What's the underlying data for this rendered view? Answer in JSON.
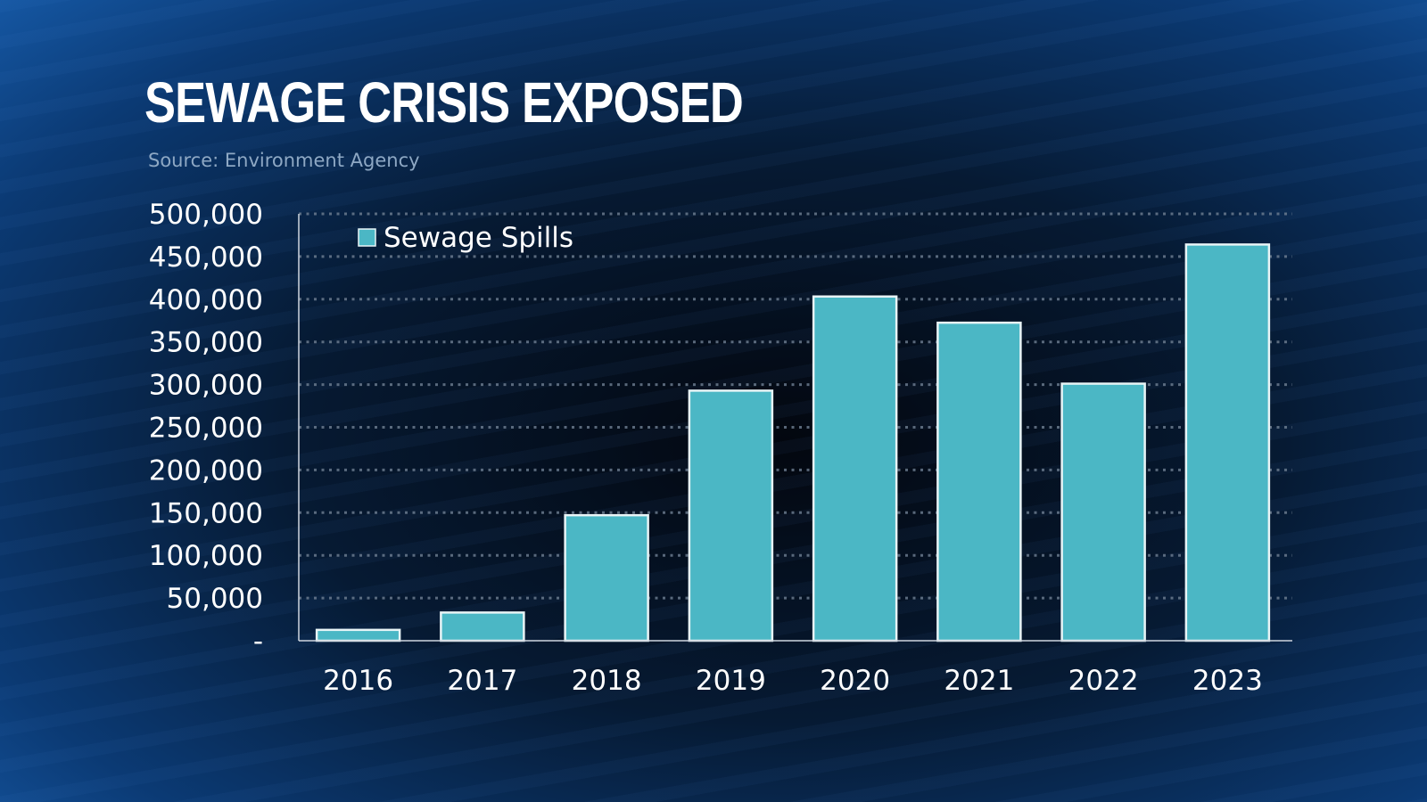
{
  "title": "SEWAGE CRISIS EXPOSED",
  "source": "Source: Environment Agency",
  "chart_data": {
    "type": "bar",
    "title": "SEWAGE CRISIS EXPOSED",
    "categories": [
      "2016",
      "2017",
      "2018",
      "2019",
      "2020",
      "2021",
      "2022",
      "2023"
    ],
    "series": [
      {
        "name": "Sewage Spills",
        "values": [
          12700,
          33000,
          147000,
          292900,
          403200,
          372500,
          301100,
          464100
        ],
        "color": "#4bb7c5"
      }
    ],
    "ylim": [
      0,
      500000
    ],
    "yticks": [
      0,
      50000,
      100000,
      150000,
      200000,
      250000,
      300000,
      350000,
      400000,
      450000,
      500000
    ],
    "ytick_labels": [
      "-",
      "50,000",
      "100,000",
      "150,000",
      "200,000",
      "250,000",
      "300,000",
      "350,000",
      "400,000",
      "450,000",
      "500,000"
    ],
    "xlabel": "",
    "ylabel": "",
    "grid": true,
    "legend": "top-left"
  }
}
